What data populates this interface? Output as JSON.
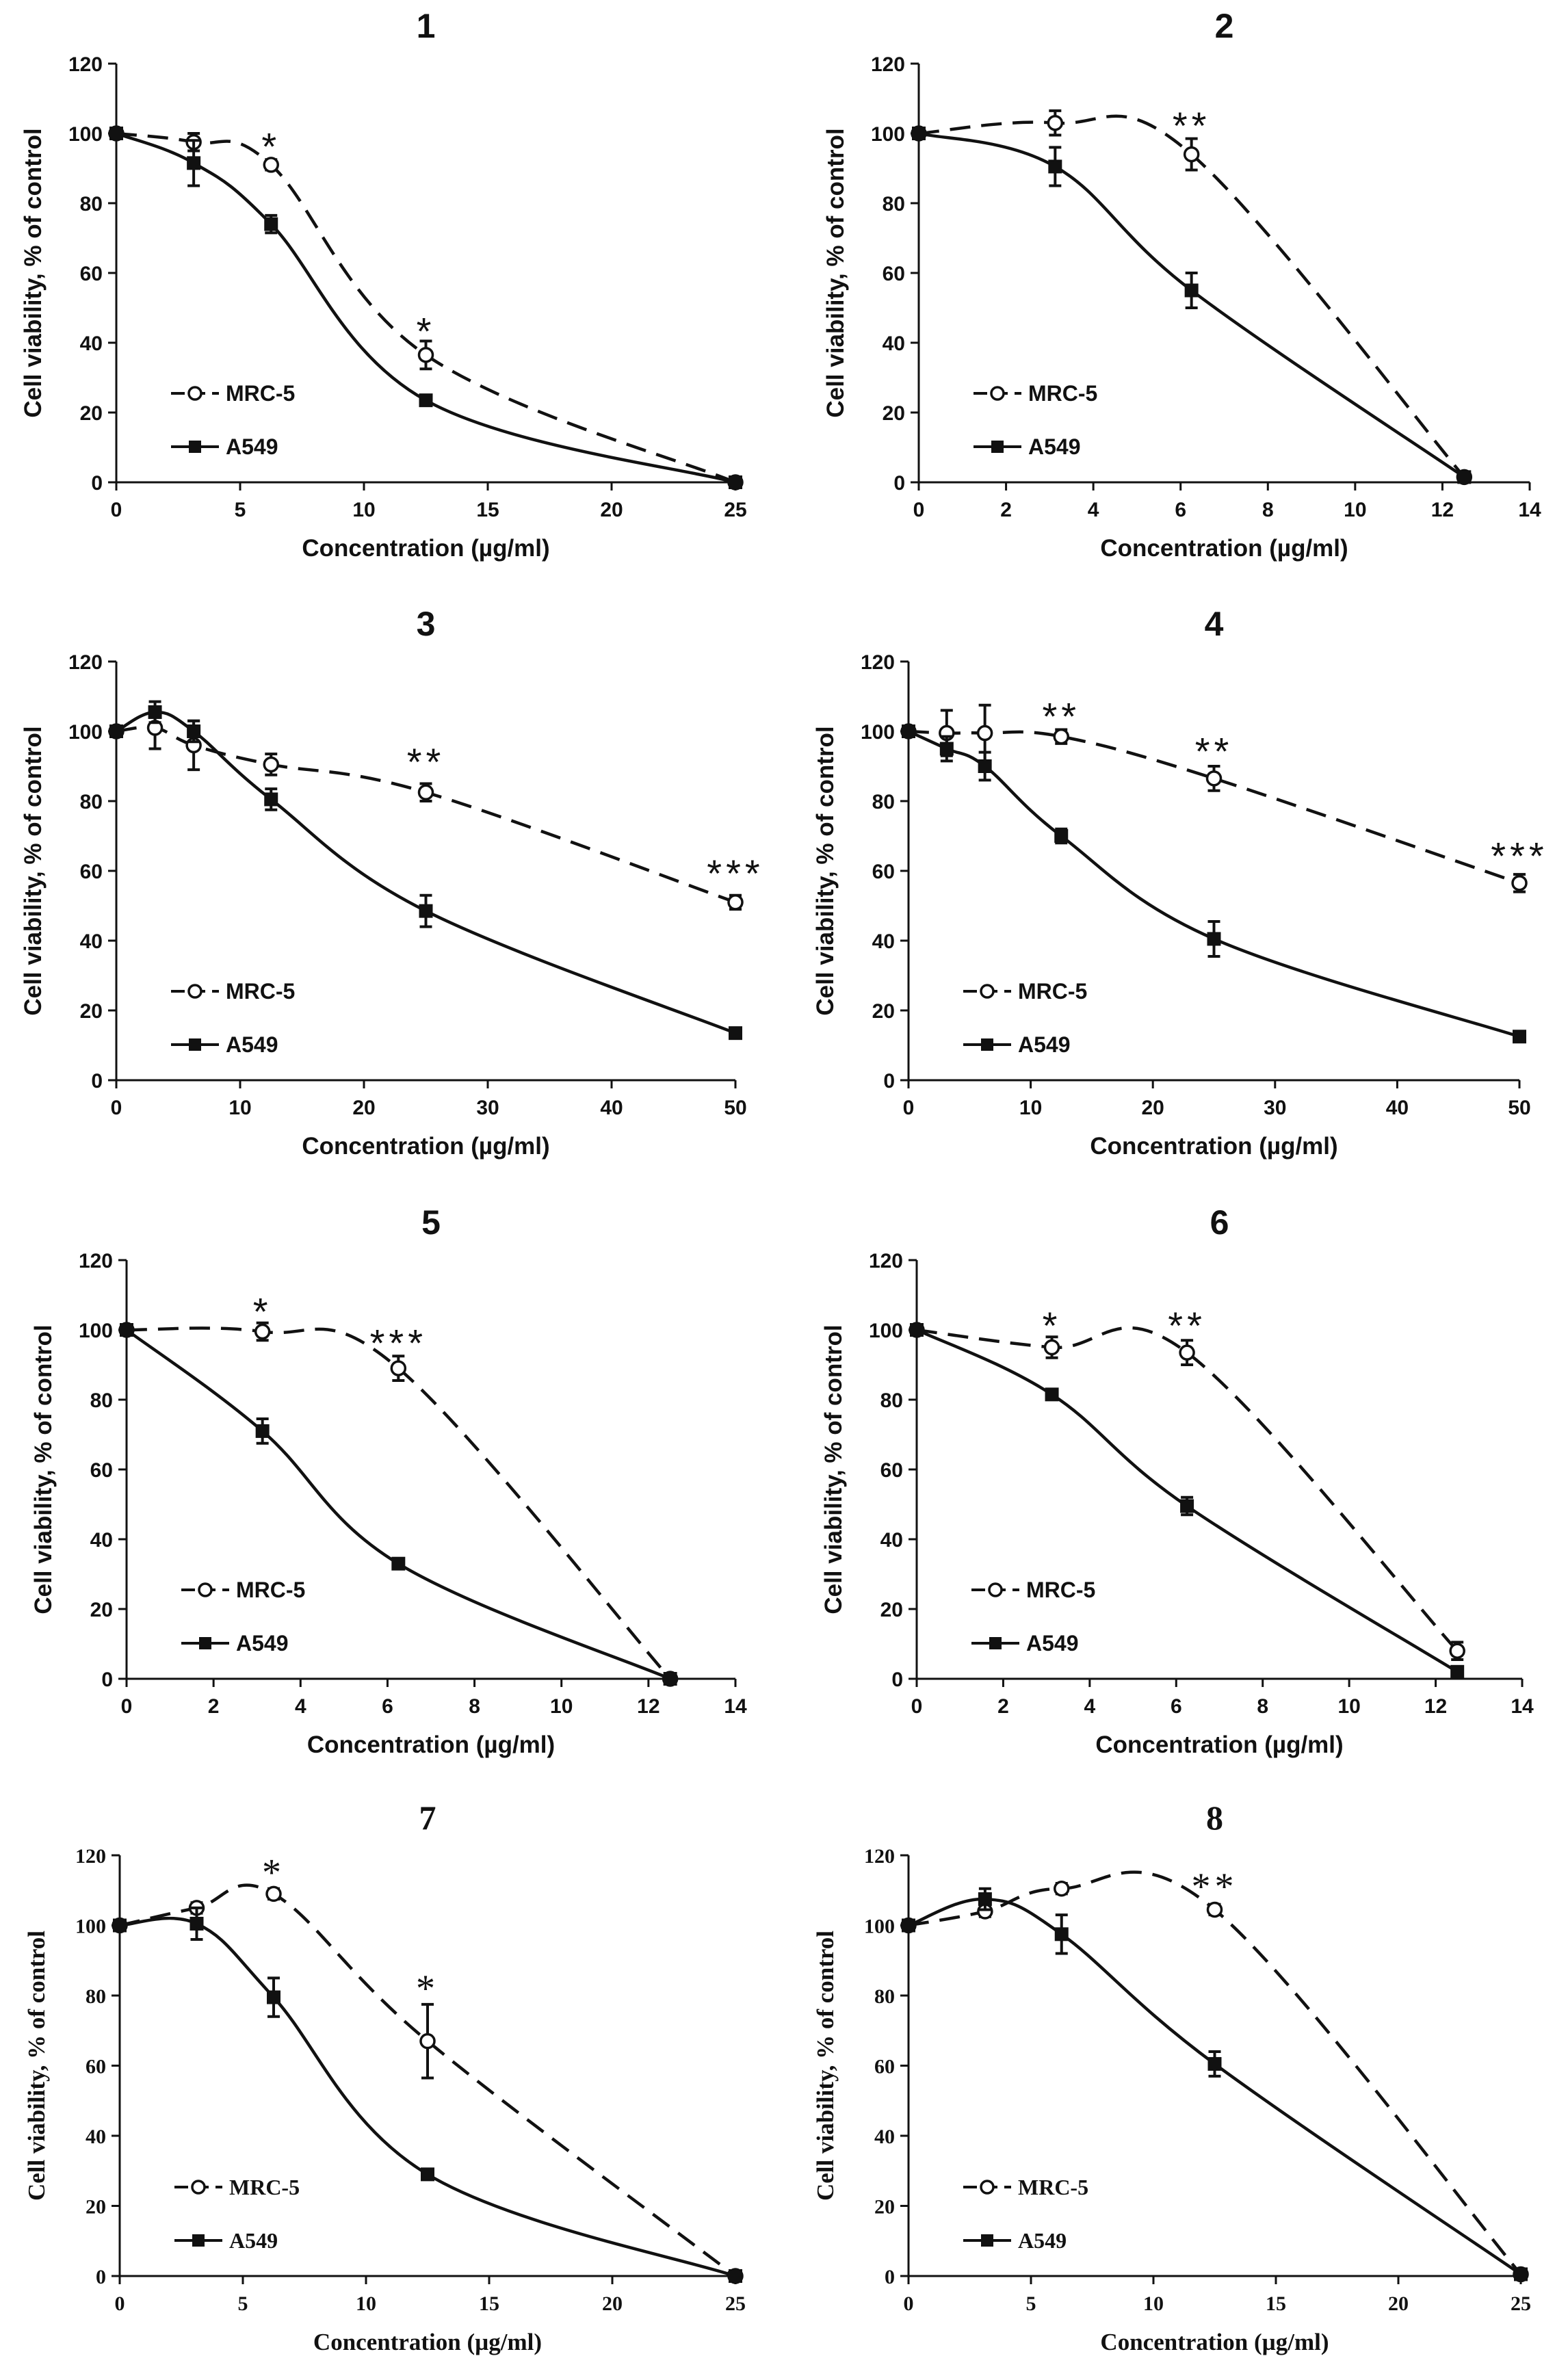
{
  "chart_data": [
    {
      "type": "line",
      "title": "1",
      "xlabel": "Concentration (µg/ml)",
      "ylabel": "Cell viability, % of control",
      "xlim": [
        0,
        25
      ],
      "xticks": [
        0,
        5,
        10,
        15,
        20,
        25
      ],
      "ylim": [
        0,
        120
      ],
      "yticks": [
        0,
        20,
        40,
        60,
        80,
        100,
        120
      ],
      "series": [
        {
          "name": "MRC-5",
          "style": "dashed",
          "marker": "open-circle",
          "x": [
            0,
            3.125,
            6.25,
            12.5,
            25
          ],
          "values": [
            100,
            97.5,
            91,
            36.5,
            0
          ],
          "errors": [
            0,
            2.5,
            1.5,
            4,
            0
          ]
        },
        {
          "name": "A549",
          "style": "solid",
          "marker": "filled-square",
          "x": [
            0,
            3.125,
            6.25,
            12.5,
            25
          ],
          "values": [
            100,
            91.5,
            74,
            23.5,
            0
          ],
          "errors": [
            0,
            6.5,
            2.5,
            1,
            0
          ]
        }
      ],
      "annotations": [
        {
          "x": 6.25,
          "y": 96,
          "text": "*"
        },
        {
          "x": 12.5,
          "y": 43,
          "text": "*"
        }
      ]
    },
    {
      "type": "line",
      "title": "2",
      "xlabel": "Concentration (µg/ml)",
      "ylabel": "Cell viability, % of control",
      "xlim": [
        0,
        14
      ],
      "xticks": [
        0,
        2,
        4,
        6,
        8,
        10,
        12,
        14
      ],
      "ylim": [
        0,
        120
      ],
      "yticks": [
        0,
        20,
        40,
        60,
        80,
        100,
        120
      ],
      "series": [
        {
          "name": "MRC-5",
          "style": "dashed",
          "marker": "open-circle",
          "x": [
            0,
            3.125,
            6.25,
            12.5
          ],
          "values": [
            100,
            103,
            94,
            1.5
          ],
          "errors": [
            0,
            3.5,
            4.5,
            1
          ]
        },
        {
          "name": "A549",
          "style": "solid",
          "marker": "filled-square",
          "x": [
            0,
            3.125,
            6.25,
            12.5
          ],
          "values": [
            100,
            90.5,
            55,
            1.5
          ],
          "errors": [
            0,
            5.5,
            5,
            1
          ]
        }
      ],
      "annotations": [
        {
          "x": 6.25,
          "y": 102,
          "text": "**"
        }
      ]
    },
    {
      "type": "line",
      "title": "3",
      "xlabel": "Concentration (µg/ml)",
      "ylabel": "Cell viability, % of control",
      "xlim": [
        0,
        50
      ],
      "xticks": [
        0,
        10,
        20,
        30,
        40,
        50
      ],
      "ylim": [
        0,
        120
      ],
      "yticks": [
        0,
        20,
        40,
        60,
        80,
        100,
        120
      ],
      "series": [
        {
          "name": "MRC-5",
          "style": "dashed",
          "marker": "open-circle",
          "x": [
            0,
            3.125,
            6.25,
            12.5,
            25,
            50
          ],
          "values": [
            100,
            101,
            96,
            90.5,
            82.5,
            51
          ],
          "errors": [
            0,
            6,
            7,
            3,
            2.5,
            2
          ]
        },
        {
          "name": "A549",
          "style": "solid",
          "marker": "filled-square",
          "x": [
            0,
            3.125,
            6.25,
            12.5,
            25,
            50
          ],
          "values": [
            100,
            105.5,
            100,
            80.5,
            48.5,
            13.5
          ],
          "errors": [
            0,
            3,
            3,
            3,
            4.5,
            1
          ]
        }
      ],
      "annotations": [
        {
          "x": 25,
          "y": 91,
          "text": "**"
        },
        {
          "x": 50,
          "y": 59,
          "text": "***"
        }
      ]
    },
    {
      "type": "line",
      "title": "4",
      "xlabel": "Concentration (µg/ml)",
      "ylabel": "Cell viability, % of control",
      "xlim": [
        0,
        50
      ],
      "xticks": [
        0,
        10,
        20,
        30,
        40,
        50
      ],
      "ylim": [
        0,
        120
      ],
      "yticks": [
        0,
        20,
        40,
        60,
        80,
        100,
        120
      ],
      "series": [
        {
          "name": "MRC-5",
          "style": "dashed",
          "marker": "open-circle",
          "x": [
            0,
            3.125,
            6.25,
            12.5,
            25,
            50
          ],
          "values": [
            100,
            99.5,
            99.5,
            98.5,
            86.5,
            56.5
          ],
          "errors": [
            0,
            6.5,
            8,
            2,
            3.5,
            2.5
          ]
        },
        {
          "name": "A549",
          "style": "solid",
          "marker": "filled-square",
          "x": [
            0,
            3.125,
            6.25,
            12.5,
            25,
            50
          ],
          "values": [
            100,
            95,
            90,
            70,
            40.5,
            12.5
          ],
          "errors": [
            0,
            3.5,
            4,
            2,
            5,
            1
          ]
        }
      ],
      "annotations": [
        {
          "x": 12.5,
          "y": 104,
          "text": "**"
        },
        {
          "x": 25,
          "y": 94,
          "text": "**"
        },
        {
          "x": 50,
          "y": 64,
          "text": "***"
        }
      ]
    },
    {
      "type": "line",
      "title": "5",
      "xlabel": "Concentration (µg/ml)",
      "ylabel": "Cell viability, % of control",
      "xlim": [
        0,
        14
      ],
      "xticks": [
        0,
        2,
        4,
        6,
        8,
        10,
        12,
        14
      ],
      "ylim": [
        0,
        120
      ],
      "yticks": [
        0,
        20,
        40,
        60,
        80,
        100,
        120
      ],
      "series": [
        {
          "name": "MRC-5",
          "style": "dashed",
          "marker": "open-circle",
          "x": [
            0,
            3.125,
            6.25,
            12.5
          ],
          "values": [
            100,
            99.5,
            89,
            0
          ],
          "errors": [
            0,
            2.5,
            3.5,
            0
          ]
        },
        {
          "name": "A549",
          "style": "solid",
          "marker": "filled-square",
          "x": [
            0,
            3.125,
            6.25,
            12.5
          ],
          "values": [
            100,
            71,
            33,
            0
          ],
          "errors": [
            0,
            3.5,
            1,
            0
          ]
        }
      ],
      "annotations": [
        {
          "x": 3.125,
          "y": 105,
          "text": "*"
        },
        {
          "x": 6.25,
          "y": 96,
          "text": "***"
        }
      ]
    },
    {
      "type": "line",
      "title": "6",
      "xlabel": "Concentration (µg/ml)",
      "ylabel": "Cell viability, % of control",
      "xlim": [
        0,
        14
      ],
      "xticks": [
        0,
        2,
        4,
        6,
        8,
        10,
        12,
        14
      ],
      "ylim": [
        0,
        120
      ],
      "yticks": [
        0,
        20,
        40,
        60,
        80,
        100,
        120
      ],
      "series": [
        {
          "name": "MRC-5",
          "style": "dashed",
          "marker": "open-circle",
          "x": [
            0,
            3.125,
            6.25,
            12.5
          ],
          "values": [
            100,
            95,
            93.5,
            8
          ],
          "errors": [
            0,
            3,
            3.5,
            2.5
          ]
        },
        {
          "name": "A549",
          "style": "solid",
          "marker": "filled-square",
          "x": [
            0,
            3.125,
            6.25,
            12.5
          ],
          "values": [
            100,
            81.5,
            49.5,
            2
          ],
          "errors": [
            0,
            1.5,
            2.5,
            0.5
          ]
        }
      ],
      "annotations": [
        {
          "x": 3.125,
          "y": 101,
          "text": "*"
        },
        {
          "x": 6.25,
          "y": 101,
          "text": "**"
        }
      ]
    },
    {
      "type": "line",
      "title": "7",
      "font": "serif",
      "xlabel": "Concentration (µg/ml)",
      "ylabel": "Cell viability, % of control",
      "xlim": [
        0,
        25
      ],
      "xticks": [
        0,
        5,
        10,
        15,
        20,
        25
      ],
      "ylim": [
        0,
        120
      ],
      "yticks": [
        0,
        20,
        40,
        60,
        80,
        100,
        120
      ],
      "series": [
        {
          "name": "MRC-5",
          "style": "dashed",
          "marker": "open-circle",
          "x": [
            0,
            3.125,
            6.25,
            12.5,
            25
          ],
          "values": [
            100,
            105,
            109,
            67,
            0
          ],
          "errors": [
            0,
            1.5,
            1.5,
            10.5,
            0
          ]
        },
        {
          "name": "A549",
          "style": "solid",
          "marker": "filled-square",
          "x": [
            0,
            3.125,
            6.25,
            12.5,
            25
          ],
          "values": [
            100,
            100.5,
            79.5,
            29,
            0
          ],
          "errors": [
            0,
            4.5,
            5.5,
            1,
            0
          ]
        }
      ],
      "annotations": [
        {
          "x": 6.25,
          "y": 115,
          "text": "*"
        },
        {
          "x": 12.5,
          "y": 82,
          "text": "*"
        }
      ]
    },
    {
      "type": "line",
      "title": "8",
      "font": "serif",
      "xlabel": "Concentration (µg/ml)",
      "ylabel": "Cell viability, % of control",
      "xlim": [
        0,
        25
      ],
      "xticks": [
        0,
        5,
        10,
        15,
        20,
        25
      ],
      "ylim": [
        0,
        120
      ],
      "yticks": [
        0,
        20,
        40,
        60,
        80,
        100,
        120
      ],
      "series": [
        {
          "name": "MRC-5",
          "style": "dashed",
          "marker": "open-circle",
          "x": [
            0,
            3.125,
            6.25,
            12.5,
            25
          ],
          "values": [
            100,
            104,
            110.5,
            104.5,
            0.5
          ],
          "errors": [
            0,
            1.5,
            1.5,
            1.5,
            0.5
          ]
        },
        {
          "name": "A549",
          "style": "solid",
          "marker": "filled-square",
          "x": [
            0,
            3.125,
            6.25,
            12.5,
            25
          ],
          "values": [
            100,
            107.5,
            97.5,
            60.5,
            0.5
          ],
          "errors": [
            0,
            3,
            5.5,
            3.5,
            0.5
          ]
        }
      ],
      "annotations": [
        {
          "x": 12.5,
          "y": 111,
          "text": "**"
        }
      ]
    }
  ]
}
